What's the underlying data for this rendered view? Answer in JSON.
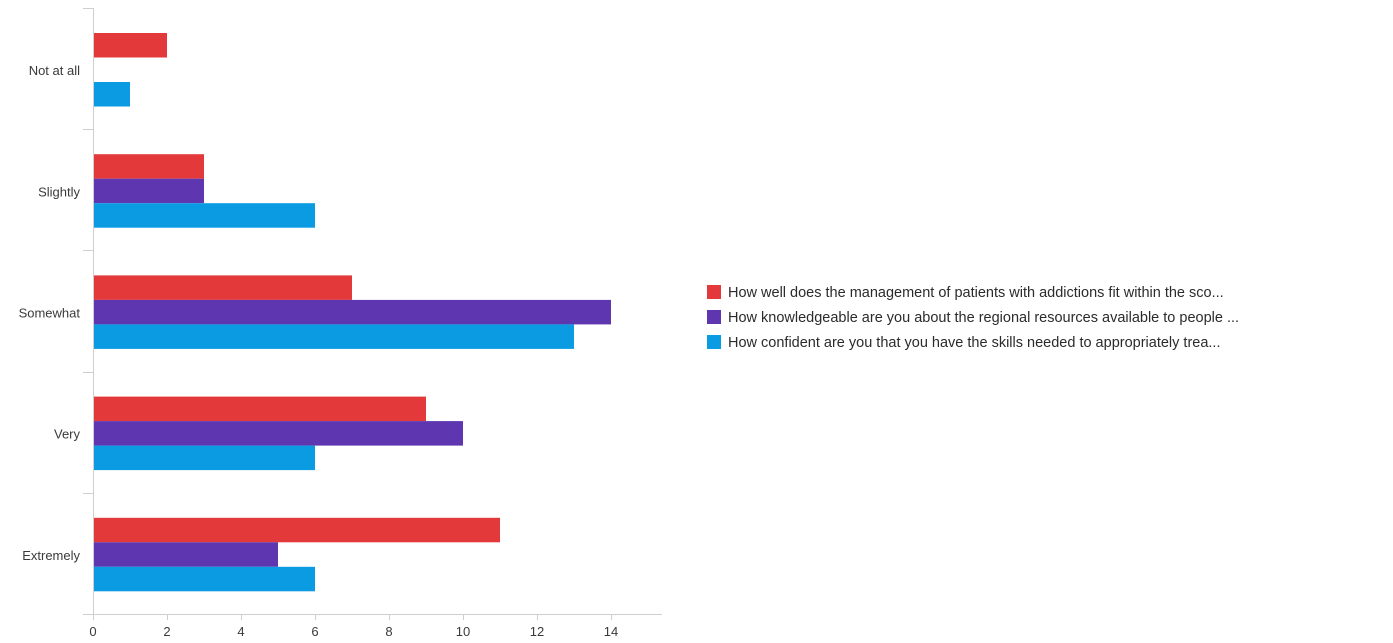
{
  "chart_data": {
    "type": "bar",
    "orientation": "horizontal",
    "categories": [
      "Not at all",
      "Slightly",
      "Somewhat",
      "Very",
      "Extremely"
    ],
    "series": [
      {
        "name": "How well does the management of patients with addictions fit within the sco...",
        "color": "#e4393b",
        "values": [
          2,
          3,
          7,
          9,
          11
        ]
      },
      {
        "name": "How knowledgeable are you about the regional resources available to people ...",
        "color": "#5e37b0",
        "values": [
          0,
          3,
          14,
          10,
          5
        ]
      },
      {
        "name": "How confident are you that you have the skills needed to appropriately trea...",
        "color": "#0a9be3",
        "values": [
          1,
          6,
          13,
          6,
          6
        ]
      }
    ],
    "x_ticks": [
      0,
      2,
      4,
      6,
      8,
      10,
      12,
      14
    ],
    "xlim": [
      0,
      15.5
    ],
    "grid": false,
    "legend_position": "right"
  }
}
